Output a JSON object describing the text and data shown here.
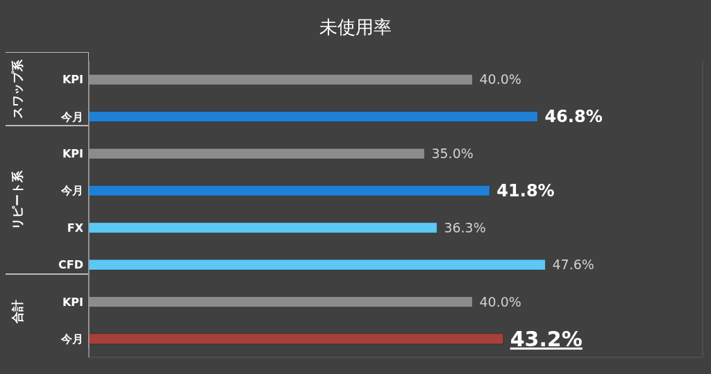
{
  "chart_data": {
    "type": "bar",
    "orientation": "horizontal",
    "title": "未使用率",
    "categories": [
      "KPI",
      "今月",
      "KPI",
      "今月",
      "FX",
      "CFD",
      "KPI",
      "今月"
    ],
    "values": [
      40.0,
      46.8,
      35.0,
      41.8,
      36.3,
      47.6,
      40.0,
      43.2
    ],
    "colors": [
      "#8c8c8c",
      "#1f80d6",
      "#8c8c8c",
      "#1f80d6",
      "#5cc8f5",
      "#5cc8f5",
      "#8c8c8c",
      "#a8403a"
    ],
    "value_labels": [
      "40.0%",
      "46.8%",
      "35.0%",
      "41.8%",
      "36.3%",
      "47.6%",
      "40.0%",
      "43.2%"
    ],
    "annotations": [
      "スワップ系",
      "リピート系",
      "合計"
    ],
    "xlim": [
      0,
      64
    ],
    "grid": "x",
    "legend": false
  }
}
